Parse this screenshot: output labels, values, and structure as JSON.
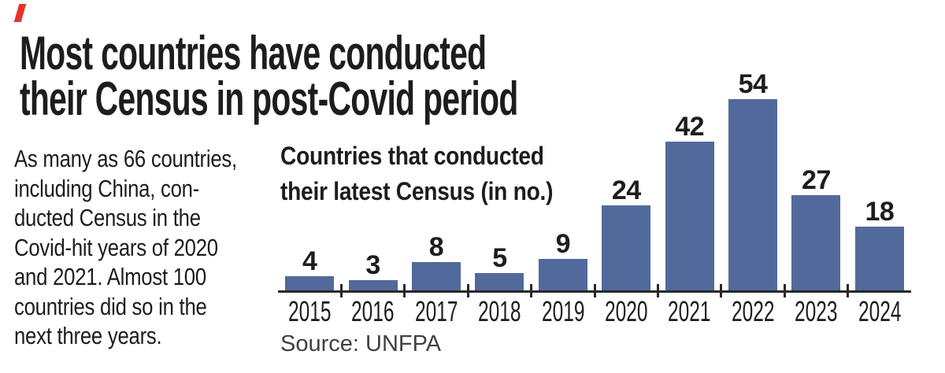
{
  "meta": {
    "accent_color": "#e6332a",
    "text_color": "#1d1d1d",
    "axis_color": "#282828",
    "source_color": "#414141"
  },
  "header": {
    "title_lines": [
      "Most countries have conducted",
      "their Census in post-Covid period"
    ]
  },
  "left_text": {
    "lines": [
      "As many as 66 countries,",
      "including China, con-",
      "ducted Census in the",
      "Covid-hit years of 2020",
      "and 2021. Almost 100",
      "countries did so in the",
      "next three years."
    ]
  },
  "chart": {
    "subtitle_lines": [
      "Countries that conducted",
      "their latest Census (in no.)"
    ],
    "bar_color": "#52699b"
  },
  "chart_data": {
    "type": "bar",
    "title": "Countries that conducted their latest Census (in no.)",
    "categories": [
      "2015",
      "2016",
      "2017",
      "2018",
      "2019",
      "2020",
      "2021",
      "2022",
      "2023",
      "2024"
    ],
    "values": [
      4,
      3,
      8,
      5,
      9,
      24,
      42,
      54,
      27,
      18
    ],
    "ylim": [
      0,
      54
    ],
    "grid": false,
    "legend": "none",
    "data_labels": true,
    "source": "Source: UNFPA"
  }
}
